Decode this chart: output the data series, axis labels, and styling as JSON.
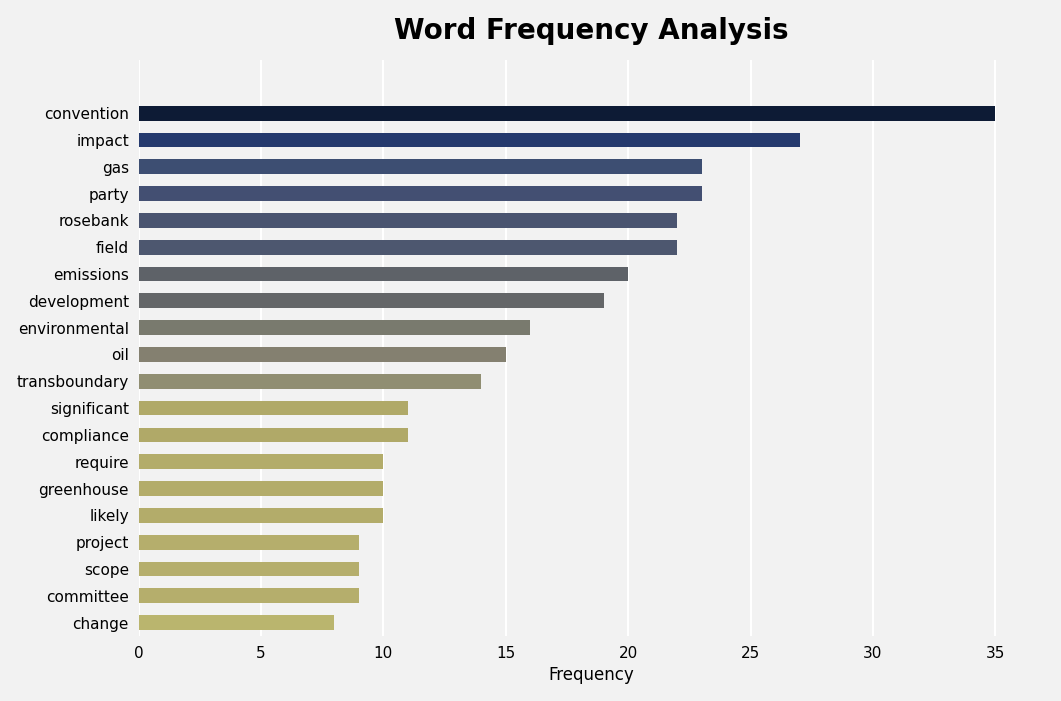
{
  "title": "Word Frequency Analysis",
  "xlabel": "Frequency",
  "categories": [
    "convention",
    "impact",
    "gas",
    "party",
    "rosebank",
    "field",
    "emissions",
    "development",
    "environmental",
    "oil",
    "transboundary",
    "significant",
    "compliance",
    "require",
    "greenhouse",
    "likely",
    "project",
    "scope",
    "committee",
    "change"
  ],
  "values": [
    35,
    27,
    23,
    23,
    22,
    22,
    20,
    19,
    16,
    15,
    14,
    11,
    11,
    10,
    10,
    10,
    9,
    9,
    9,
    8
  ],
  "bar_colors": [
    "#0d1b35",
    "#253a6e",
    "#3d4e72",
    "#434f72",
    "#4a5470",
    "#4d576f",
    "#5e6268",
    "#646668",
    "#797a6e",
    "#848070",
    "#908e72",
    "#b0a968",
    "#b0a968",
    "#b3ac6a",
    "#b3ac6a",
    "#b3ac6a",
    "#b5ae6c",
    "#b5ae6c",
    "#b5ae6c",
    "#bab56e"
  ],
  "xlim": [
    0,
    37
  ],
  "background_color": "#f2f2f2",
  "plot_bg_color": "#f2f2f2",
  "title_fontsize": 20,
  "label_fontsize": 12,
  "tick_fontsize": 11,
  "bar_height": 0.55
}
